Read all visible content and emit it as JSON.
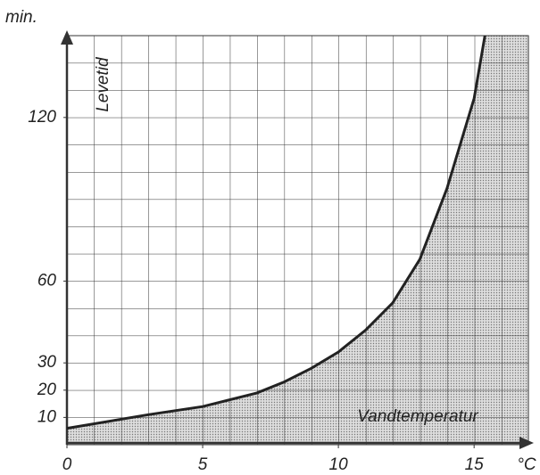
{
  "chart_data": {
    "type": "line",
    "y_unit": "min.",
    "y_label": "Levetid",
    "x_label": "Vandtemperatur",
    "x_unit": "°C",
    "x": [
      0,
      3,
      5,
      7,
      8,
      9,
      10,
      11,
      12,
      13,
      14,
      15,
      15.4
    ],
    "series": [
      {
        "color": "#222222",
        "values": [
          6,
          11,
          14,
          19,
          23,
          28,
          34,
          42,
          52,
          68,
          94,
          127,
          150
        ]
      }
    ],
    "xlim": [
      0,
      17
    ],
    "ylim": [
      0,
      150
    ],
    "xticks": [
      0,
      5,
      10,
      15
    ],
    "yticks": [
      10,
      20,
      30,
      60,
      120
    ],
    "shaded_area": true,
    "grid": true
  }
}
